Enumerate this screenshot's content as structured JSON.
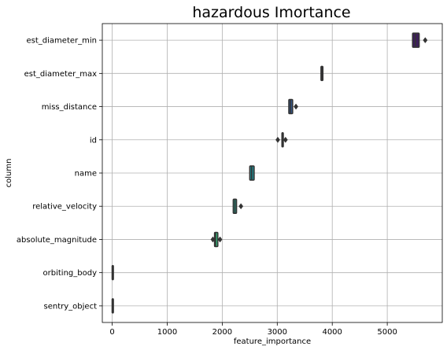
{
  "chart_data": {
    "type": "boxplot",
    "title": "hazardous Imortance",
    "xlabel": "feature_importance",
    "ylabel": "column",
    "xlim": [
      -180,
      6000
    ],
    "xticks": [
      0,
      1000,
      2000,
      3000,
      4000,
      5000
    ],
    "grid": true,
    "orientation": "horizontal",
    "categories": [
      "est_diameter_min",
      "est_diameter_max",
      "miss_distance",
      "id",
      "name",
      "relative_velocity",
      "absolute_magnitude",
      "orbiting_body",
      "sentry_object"
    ],
    "boxes": [
      {
        "category": "est_diameter_min",
        "q1": 5460,
        "median": 5510,
        "q3": 5580,
        "whisker_low": 5460,
        "whisker_high": 5580,
        "outliers": [
          5690
        ],
        "color": "#3d1f5a"
      },
      {
        "category": "est_diameter_max",
        "q1": 3795,
        "median": 3810,
        "q3": 3830,
        "whisker_low": 3795,
        "whisker_high": 3830,
        "outliers": [],
        "color": "#3b2f6e"
      },
      {
        "category": "miss_distance",
        "q1": 3210,
        "median": 3240,
        "q3": 3280,
        "whisker_low": 3210,
        "whisker_high": 3280,
        "outliers": [
          3340
        ],
        "color": "#34568a"
      },
      {
        "category": "id",
        "q1": 3085,
        "median": 3095,
        "q3": 3110,
        "whisker_low": 3085,
        "whisker_high": 3110,
        "outliers": [
          3010,
          3150
        ],
        "color": "#2c6f8a"
      },
      {
        "category": "name",
        "q1": 2500,
        "median": 2535,
        "q3": 2580,
        "whisker_low": 2500,
        "whisker_high": 2580,
        "outliers": [],
        "color": "#21858c"
      },
      {
        "category": "relative_velocity",
        "q1": 2200,
        "median": 2230,
        "q3": 2260,
        "whisker_low": 2200,
        "whisker_high": 2260,
        "outliers": [
          2340
        ],
        "color": "#209a86"
      },
      {
        "category": "absolute_magnitude",
        "q1": 1860,
        "median": 1880,
        "q3": 1920,
        "whisker_low": 1860,
        "whisker_high": 1920,
        "outliers": [
          1830,
          1960
        ],
        "color": "#35b779"
      },
      {
        "category": "orbiting_body",
        "q1": 0,
        "median": 0,
        "q3": 0,
        "whisker_low": 0,
        "whisker_high": 0,
        "outliers": [],
        "color": "#8fd744"
      },
      {
        "category": "sentry_object",
        "q1": 0,
        "median": 0,
        "q3": 0,
        "whisker_low": 0,
        "whisker_high": 0,
        "outliers": [],
        "color": "#c8e020"
      }
    ]
  }
}
